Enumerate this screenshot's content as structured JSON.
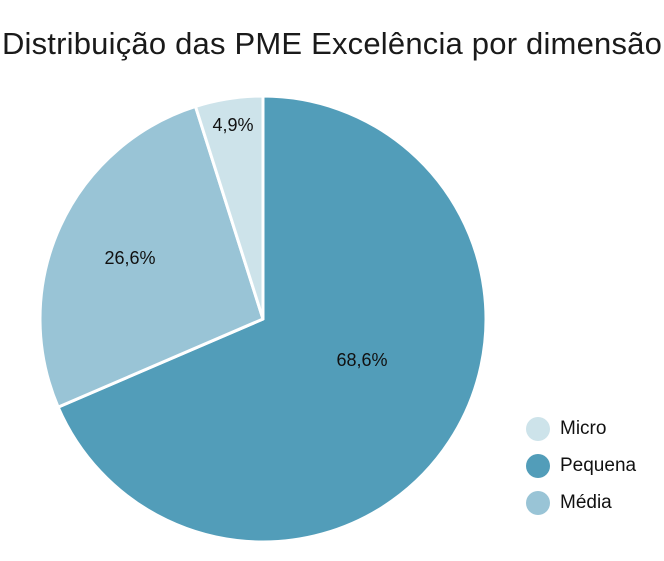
{
  "chart_data": {
    "type": "pie",
    "title": "Distribuição das PME Excelência por dimensão",
    "slices": [
      {
        "name": "Micro",
        "value": 4.9,
        "label": "4,9%",
        "color": "#cde3ea"
      },
      {
        "name": "Pequena",
        "value": 68.6,
        "label": "68,6%",
        "color": "#529db9"
      },
      {
        "name": "Média",
        "value": 26.6,
        "label": "26,6%",
        "color": "#99c4d6"
      }
    ],
    "legend_position": "bottom-right",
    "start_angle": "12 o'clock, clockwise order: Pequena, Média, Micro"
  }
}
